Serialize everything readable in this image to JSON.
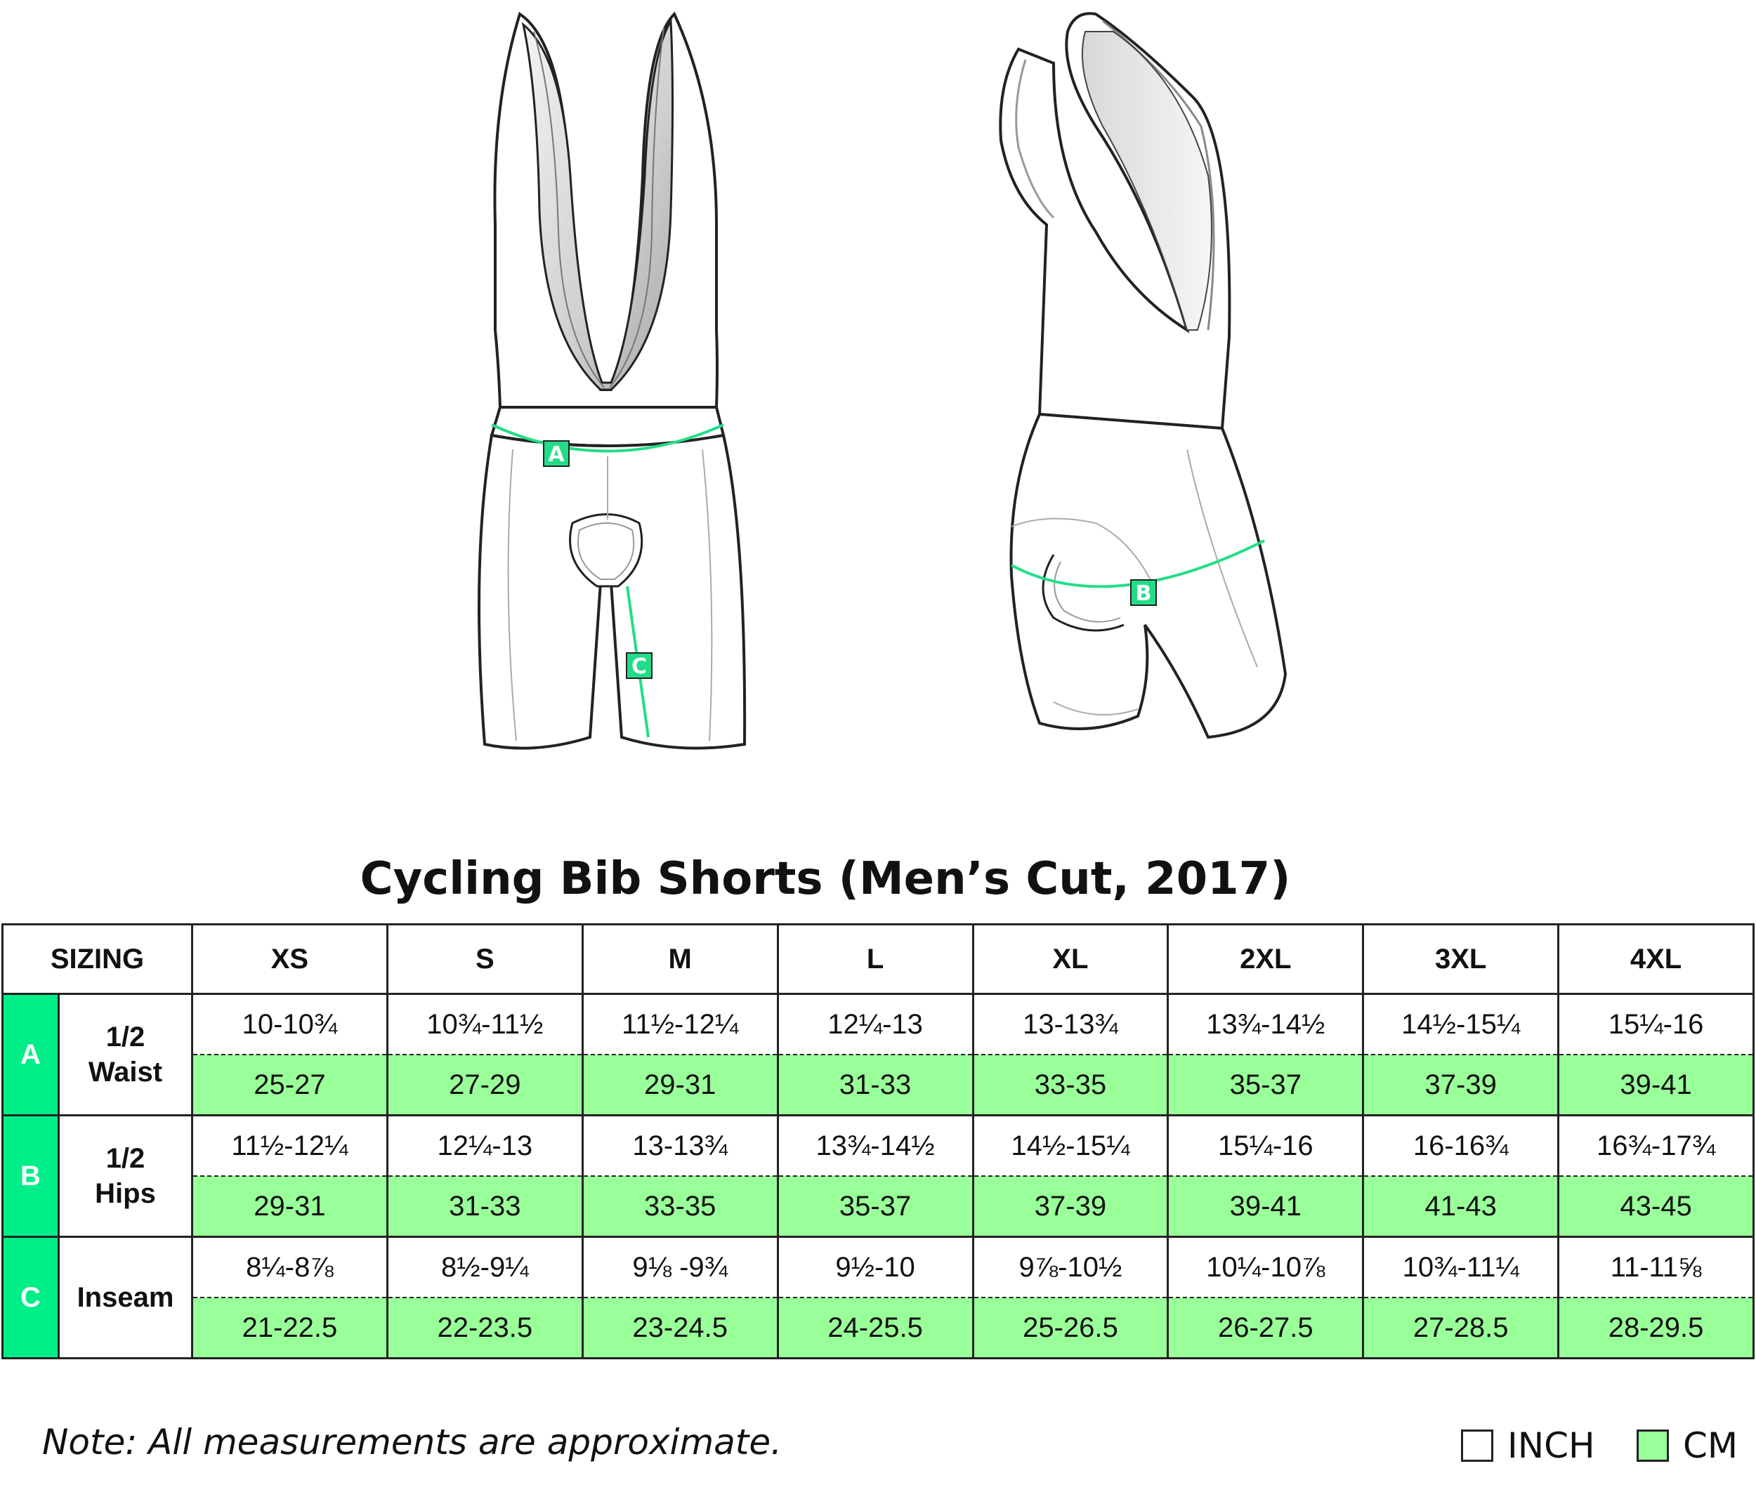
{
  "labels": {
    "a": "A",
    "b": "B",
    "c": "C"
  },
  "colors": {
    "accent": "#00ee88",
    "cm_fill": "#99ff99",
    "measure_line": "#22dd88"
  },
  "title": "Cycling Bib Shorts (Men’s Cut, 2017)",
  "table": {
    "corner": "SIZING",
    "sizes": [
      "XS",
      "S",
      "M",
      "L",
      "XL",
      "2XL",
      "3XL",
      "4XL"
    ],
    "rows": [
      {
        "letter": "A",
        "name_line1": "1/2",
        "name_line2": "Waist",
        "inch": [
          "10-10¾",
          "10¾-11½",
          "11½-12¼",
          "12¼-13",
          "13-13¾",
          "13¾-14½",
          "14½-15¼",
          "15¼-16"
        ],
        "cm": [
          "25-27",
          "27-29",
          "29-31",
          "31-33",
          "33-35",
          "35-37",
          "37-39",
          "39-41"
        ]
      },
      {
        "letter": "B",
        "name_line1": "1/2",
        "name_line2": "Hips",
        "inch": [
          "11½-12¼",
          "12¼-13",
          "13-13¾",
          "13¾-14½",
          "14½-15¼",
          "15¼-16",
          "16-16¾",
          "16¾-17¾"
        ],
        "cm": [
          "29-31",
          "31-33",
          "33-35",
          "35-37",
          "37-39",
          "39-41",
          "41-43",
          "43-45"
        ]
      },
      {
        "letter": "C",
        "name_line1": "Inseam",
        "name_line2": "",
        "inch": [
          "8¼-8⅞",
          "8½-9¼",
          "9⅛ -9¾",
          "9½-10",
          "9⅞-10½",
          "10¼-10⅞",
          "10¾-11¼",
          "11-11⅝"
        ],
        "cm": [
          "21-22.5",
          "22-23.5",
          "23-24.5",
          "24-25.5",
          "25-26.5",
          "26-27.5",
          "27-28.5",
          "28-29.5"
        ]
      }
    ]
  },
  "note": "Note: All measurements are approximate.",
  "legend": {
    "inch": "INCH",
    "cm": "CM"
  }
}
